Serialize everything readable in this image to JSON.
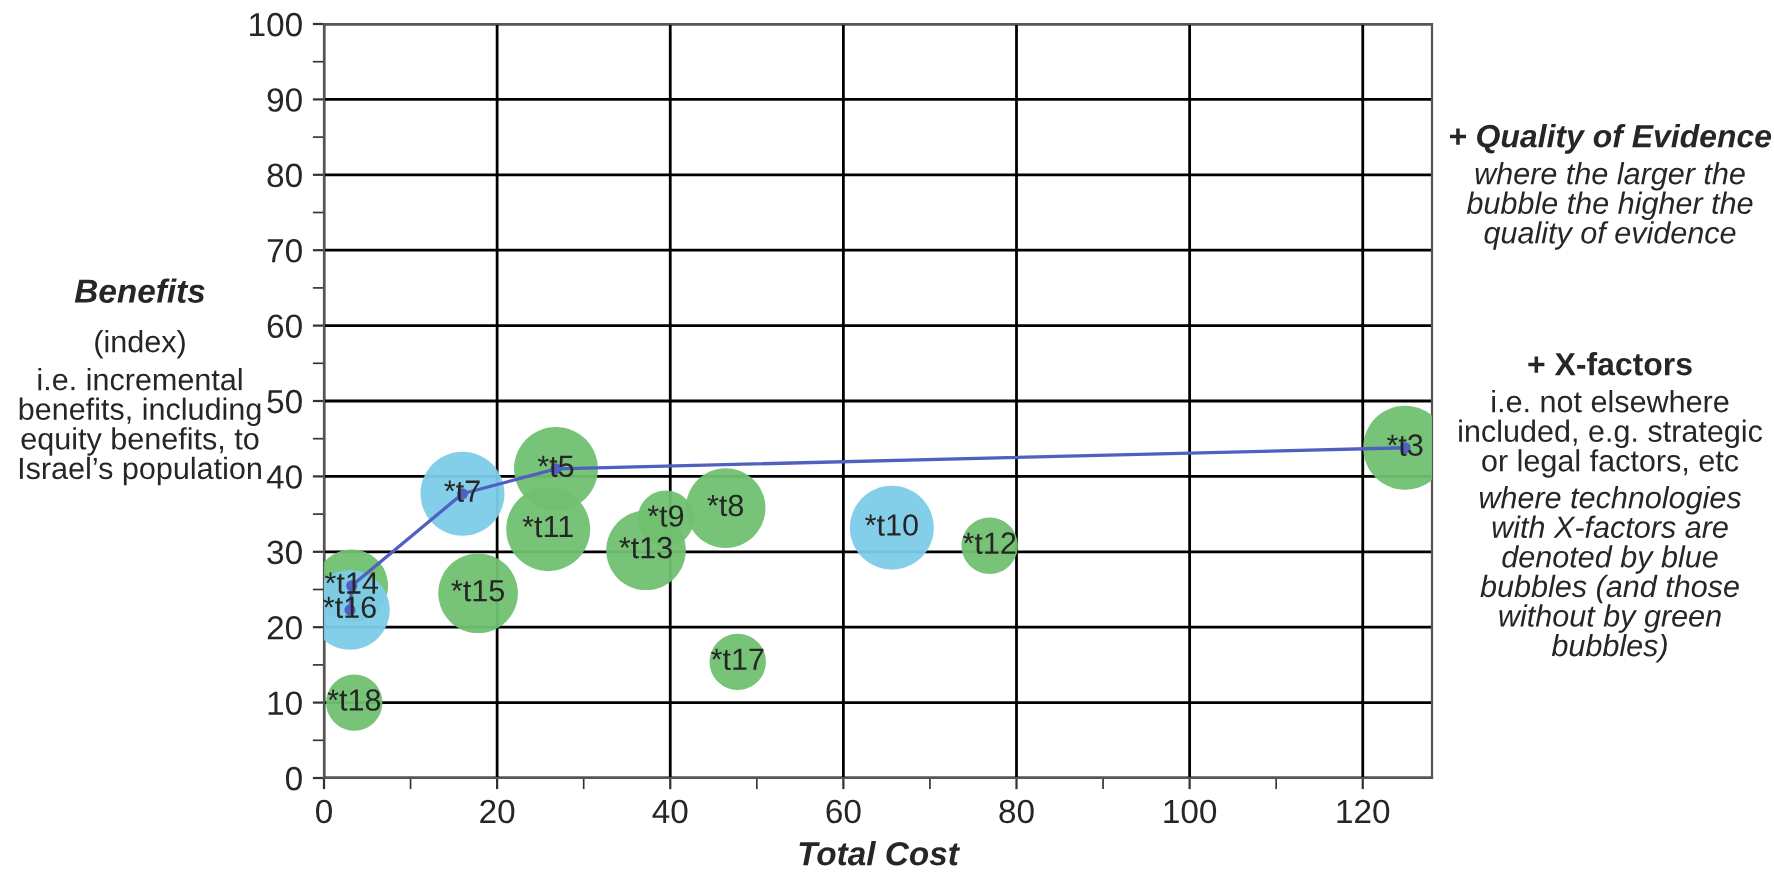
{
  "chart_data": {
    "type": "bubble",
    "xlabel": "Total Cost",
    "ylabel": "Benefits",
    "xlim": [
      0,
      128
    ],
    "ylim": [
      0,
      100
    ],
    "xticks": [
      0,
      20,
      40,
      60,
      80,
      100,
      120
    ],
    "yticks": [
      0,
      10,
      20,
      30,
      40,
      50,
      60,
      70,
      80,
      90,
      100
    ],
    "grid": true,
    "series": [
      {
        "type": "bubble",
        "color": "#70c070",
        "x": [
          3.2,
          3.5,
          26.8,
          25.9,
          17.8,
          39.5,
          37.2,
          46.4,
          47.8,
          76.9,
          124.9
        ],
        "values": [
          25.5,
          10,
          41,
          33,
          24.5,
          34.4,
          30.2,
          35.8,
          15.4,
          30.8,
          43.8
        ],
        "sizes": [
          0.75,
          0.45,
          1,
          1,
          0.9,
          0.45,
          0.9,
          0.9,
          0.45,
          0.45,
          1
        ]
      },
      {
        "type": "bubble",
        "color": "#7ccbe8",
        "x": [
          3,
          16,
          65.6
        ],
        "values": [
          22.3,
          37.7,
          33.2
        ],
        "sizes": [
          0.9,
          1,
          1
        ]
      },
      {
        "type": "line",
        "color": "#5060c0",
        "x": [
          3,
          3.2,
          16,
          26.8,
          124.9
        ],
        "values": [
          22.3,
          25.5,
          37.7,
          41,
          43.8
        ],
        "marker": "circle"
      }
    ],
    "annotations": [
      "(index)",
      "i.e. incremental\nbenefits, including\nequity benefits, to\nIsrael’s population",
      "+ Quality of Evidence",
      "where the larger the\nbubble the higher the\nquality of evidence",
      "+ X-factors",
      "i.e. not elsewhere\nincluded, e.g. strategic\nor legal factors, etc",
      "where technologies\nwith X-factors are\ndenoted by blue\nbubbles (and those\nwithout by green\nbubbles)",
      {
        "text": "*t14",
        "x": 3.2,
        "y": 25.5
      },
      {
        "text": "*t16",
        "x": 3,
        "y": 22.3
      },
      {
        "text": "*t18",
        "x": 3.5,
        "y": 10
      },
      {
        "text": "*t7",
        "x": 16,
        "y": 37.7
      },
      {
        "text": "*t5",
        "x": 26.8,
        "y": 41
      },
      {
        "text": "*t11",
        "x": 25.9,
        "y": 33
      },
      {
        "text": "*t15",
        "x": 17.8,
        "y": 24.5
      },
      {
        "text": "*t9",
        "x": 39.5,
        "y": 34.4
      },
      {
        "text": "*t13",
        "x": 37.2,
        "y": 30.2
      },
      {
        "text": "*t8",
        "x": 46.4,
        "y": 35.8
      },
      {
        "text": "*t17",
        "x": 47.8,
        "y": 15.4
      },
      {
        "text": "*t10",
        "x": 65.6,
        "y": 33.2
      },
      {
        "text": "*t12",
        "x": 76.9,
        "y": 30.8
      },
      {
        "text": "*t3",
        "x": 124.9,
        "y": 43.8
      }
    ]
  }
}
